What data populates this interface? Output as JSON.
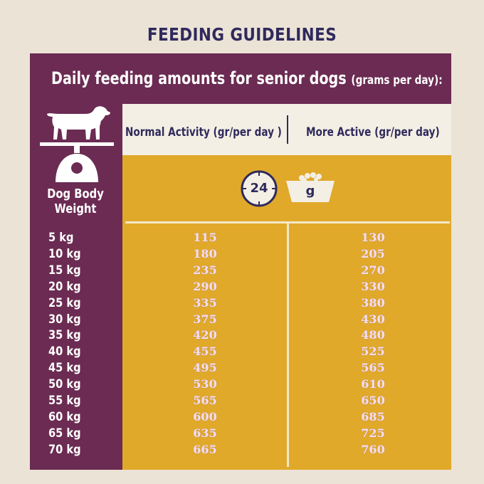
{
  "title": "FEEDING GUIDELINES",
  "subtitle": {
    "main": "Daily feeding amounts for senior dogs",
    "unit": "(grams per day):"
  },
  "columns": {
    "normal": "Normal Activity (gr/per day )",
    "active": "More Active (gr/per day)"
  },
  "weight_label_line1": "Dog Body",
  "weight_label_line2": "Weight",
  "clock_value": "24",
  "bowl_unit": "g",
  "icons": [
    "dog-icon",
    "scale-icon",
    "clock-icon",
    "bowl-icon"
  ],
  "colors": {
    "background": "#ebe3d6",
    "purple": "#6b2b52",
    "yellow": "#e0a92a",
    "navy": "#2f2a5c",
    "cream": "#f4efe4"
  },
  "rows": [
    {
      "weight": "5 kg",
      "normal": "115",
      "active": "130"
    },
    {
      "weight": "10 kg",
      "normal": "180",
      "active": "205"
    },
    {
      "weight": "15 kg",
      "normal": "235",
      "active": "270"
    },
    {
      "weight": "20 kg",
      "normal": "290",
      "active": "330"
    },
    {
      "weight": "25 kg",
      "normal": "335",
      "active": "380"
    },
    {
      "weight": "30 kg",
      "normal": "375",
      "active": "430"
    },
    {
      "weight": "35 kg",
      "normal": "420",
      "active": "480"
    },
    {
      "weight": "40 kg",
      "normal": "455",
      "active": "525"
    },
    {
      "weight": "45 kg",
      "normal": "495",
      "active": "565"
    },
    {
      "weight": "50 kg",
      "normal": "530",
      "active": "610"
    },
    {
      "weight": "55 kg",
      "normal": "565",
      "active": "650"
    },
    {
      "weight": "60 kg",
      "normal": "600",
      "active": "685"
    },
    {
      "weight": "65 kg",
      "normal": "635",
      "active": "725"
    },
    {
      "weight": "70 kg",
      "normal": "665",
      "active": "760"
    }
  ]
}
